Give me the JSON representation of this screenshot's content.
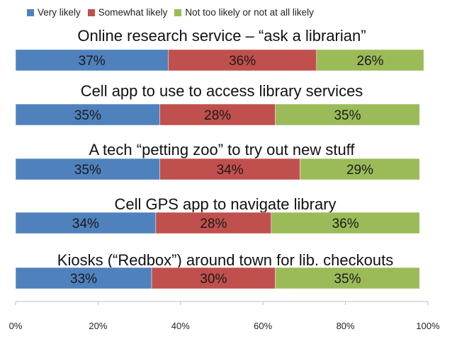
{
  "chart_data": {
    "type": "bar",
    "orientation": "horizontal",
    "stacked": true,
    "categories": [
      "Online research service – “ask a librarian”",
      "Cell app to use to access library services",
      "A tech “petting zoo” to try out new stuff",
      "Cell GPS app to navigate library",
      "Kiosks (“Redbox”) around town for lib. checkouts"
    ],
    "series": [
      {
        "name": "Very likely",
        "color": "#4f81bd",
        "values": [
          37,
          35,
          35,
          34,
          33
        ]
      },
      {
        "name": "Somewhat likely",
        "color": "#c0504d",
        "values": [
          36,
          28,
          34,
          28,
          30
        ]
      },
      {
        "name": "Not too likely or not at all likely",
        "color": "#9bbb59",
        "values": [
          26,
          35,
          29,
          36,
          35
        ]
      }
    ],
    "data_labels": [
      [
        "37%",
        "36%",
        "26%"
      ],
      [
        "35%",
        "28%",
        "35%"
      ],
      [
        "35%",
        "34%",
        "29%"
      ],
      [
        "34%",
        "28%",
        "36%"
      ],
      [
        "33%",
        "30%",
        "35%"
      ]
    ],
    "xlim": [
      0,
      100
    ],
    "xticks": [
      0,
      20,
      40,
      60,
      80,
      100
    ],
    "xtick_labels": [
      "0%",
      "20%",
      "40%",
      "60%",
      "80%",
      "100%"
    ],
    "legend_position": "top",
    "grid": false
  }
}
